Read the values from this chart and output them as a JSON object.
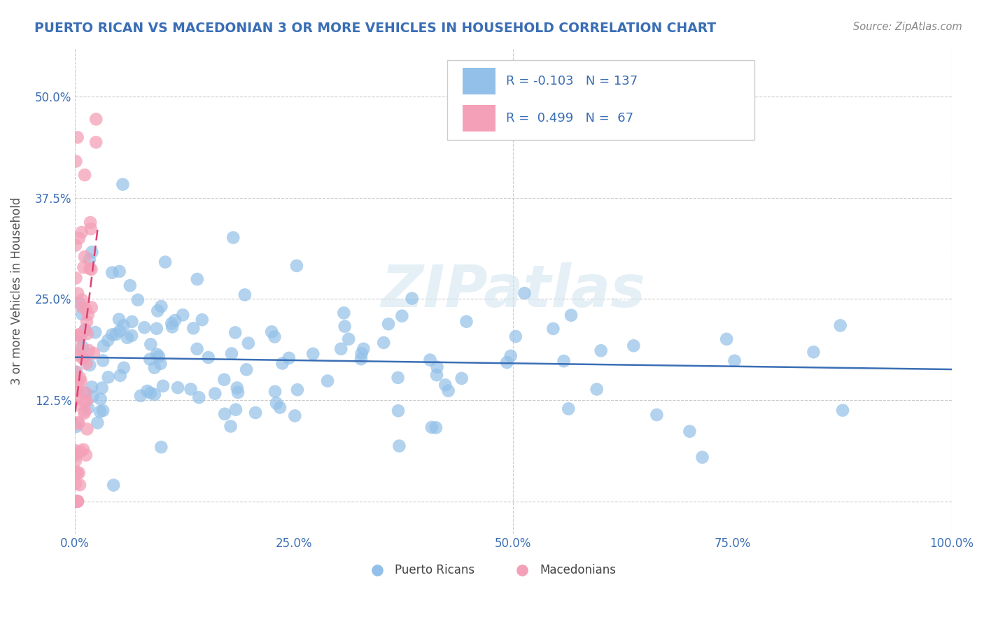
{
  "title": "PUERTO RICAN VS MACEDONIAN 3 OR MORE VEHICLES IN HOUSEHOLD CORRELATION CHART",
  "source": "Source: ZipAtlas.com",
  "ylabel": "3 or more Vehicles in Household",
  "xlim": [
    0,
    1.0
  ],
  "ylim": [
    -0.04,
    0.56
  ],
  "xticks": [
    0.0,
    0.25,
    0.5,
    0.75,
    1.0
  ],
  "xticklabels": [
    "0.0%",
    "25.0%",
    "50.0%",
    "75.0%",
    "100.0%"
  ],
  "yticks": [
    0.0,
    0.125,
    0.25,
    0.375,
    0.5
  ],
  "yticklabels": [
    "",
    "12.5%",
    "25.0%",
    "37.5%",
    "50.0%"
  ],
  "blue_color": "#92c0e8",
  "pink_color": "#f4a0b8",
  "blue_line_color": "#3a6eb5",
  "pink_line_color": "#e04070",
  "legend_text_color": "#3a6eb5",
  "tick_color": "#3a6eb5",
  "blue_R": -0.103,
  "blue_N": 137,
  "pink_R": 0.499,
  "pink_N": 67,
  "legend_label_blue": "Puerto Ricans",
  "legend_label_pink": "Macedonians",
  "watermark": "ZIPatlas",
  "title_color": "#3a6eb5",
  "source_color": "#888888"
}
